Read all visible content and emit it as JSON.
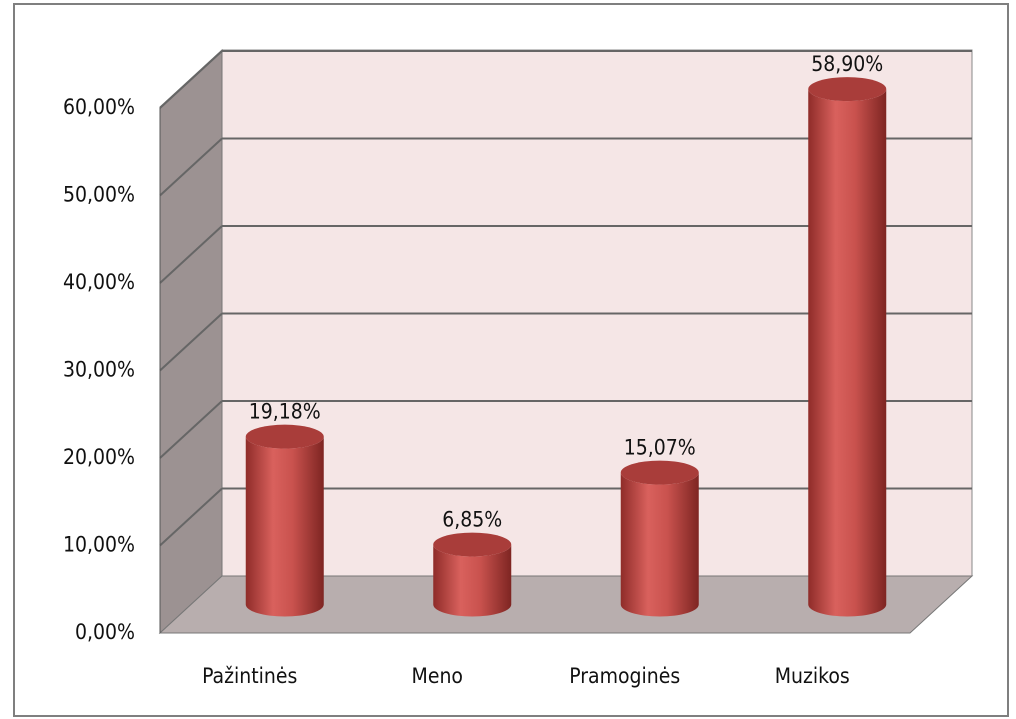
{
  "chart_data": {
    "type": "bar",
    "categories": [
      "Pažintinės",
      "Meno",
      "Pramoginės",
      "Muzikos"
    ],
    "values": [
      19.18,
      6.85,
      15.07,
      58.9
    ],
    "value_labels": [
      "19,18%",
      "6,85%",
      "15,07%",
      "58,90%"
    ],
    "color": "#c0504d",
    "ylim": [
      0,
      60
    ],
    "yticks": [
      {
        "value": 0,
        "label": "0,00%"
      },
      {
        "value": 10,
        "label": "10,00%"
      },
      {
        "value": 20,
        "label": "20,00%"
      },
      {
        "value": 30,
        "label": "30,00%"
      },
      {
        "value": 40,
        "label": "40,00%"
      },
      {
        "value": 50,
        "label": "50,00%"
      },
      {
        "value": 60,
        "label": "60,00%"
      }
    ],
    "grid": true
  }
}
